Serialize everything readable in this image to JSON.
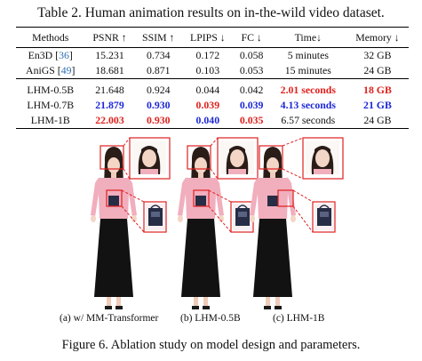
{
  "table_caption": "Table 2. Human animation results on in-the-wild video dataset.",
  "table": {
    "headers": [
      "Methods",
      "PSNR ↑",
      "SSIM ↑",
      "LPIPS ↓",
      "FC ↓",
      "Time↓",
      "Memory ↓"
    ],
    "rows": [
      {
        "method": "En3D",
        "cite": "36",
        "psnr": "15.231",
        "ssim": "0.734",
        "lpips": "0.172",
        "fc": "0.058",
        "time": "5 minutes",
        "memory": "32 GB"
      },
      {
        "method": "AniGS",
        "cite": "49",
        "psnr": "18.681",
        "ssim": "0.871",
        "lpips": "0.103",
        "fc": "0.053",
        "time": "15 minutes",
        "memory": "24 GB"
      },
      {
        "method": "LHM-0.5B",
        "psnr": "21.648",
        "ssim": "0.924",
        "lpips": "0.044",
        "fc": "0.042",
        "time": "2.01 seconds",
        "memory": "18 GB"
      },
      {
        "method": "LHM-0.7B",
        "psnr": "21.879",
        "ssim": "0.930",
        "lpips": "0.039",
        "fc": "0.039",
        "time": "4.13 seconds",
        "memory": "21 GB"
      },
      {
        "method": "LHM-1B",
        "psnr": "22.003",
        "ssim": "0.930",
        "lpips": "0.040",
        "fc": "0.035",
        "time": "6.57 seconds",
        "memory": "24 GB"
      }
    ],
    "colors": {
      "best": "#e0201c",
      "second": "#1d28d6",
      "citation": "#2f6fb5"
    }
  },
  "subcaptions": [
    "(a) w/ MM-Transformer",
    "(b) LHM-0.5B",
    "(c) LHM-1B"
  ],
  "figure_caption": "Figure 6. Ablation study on model design and parameters."
}
